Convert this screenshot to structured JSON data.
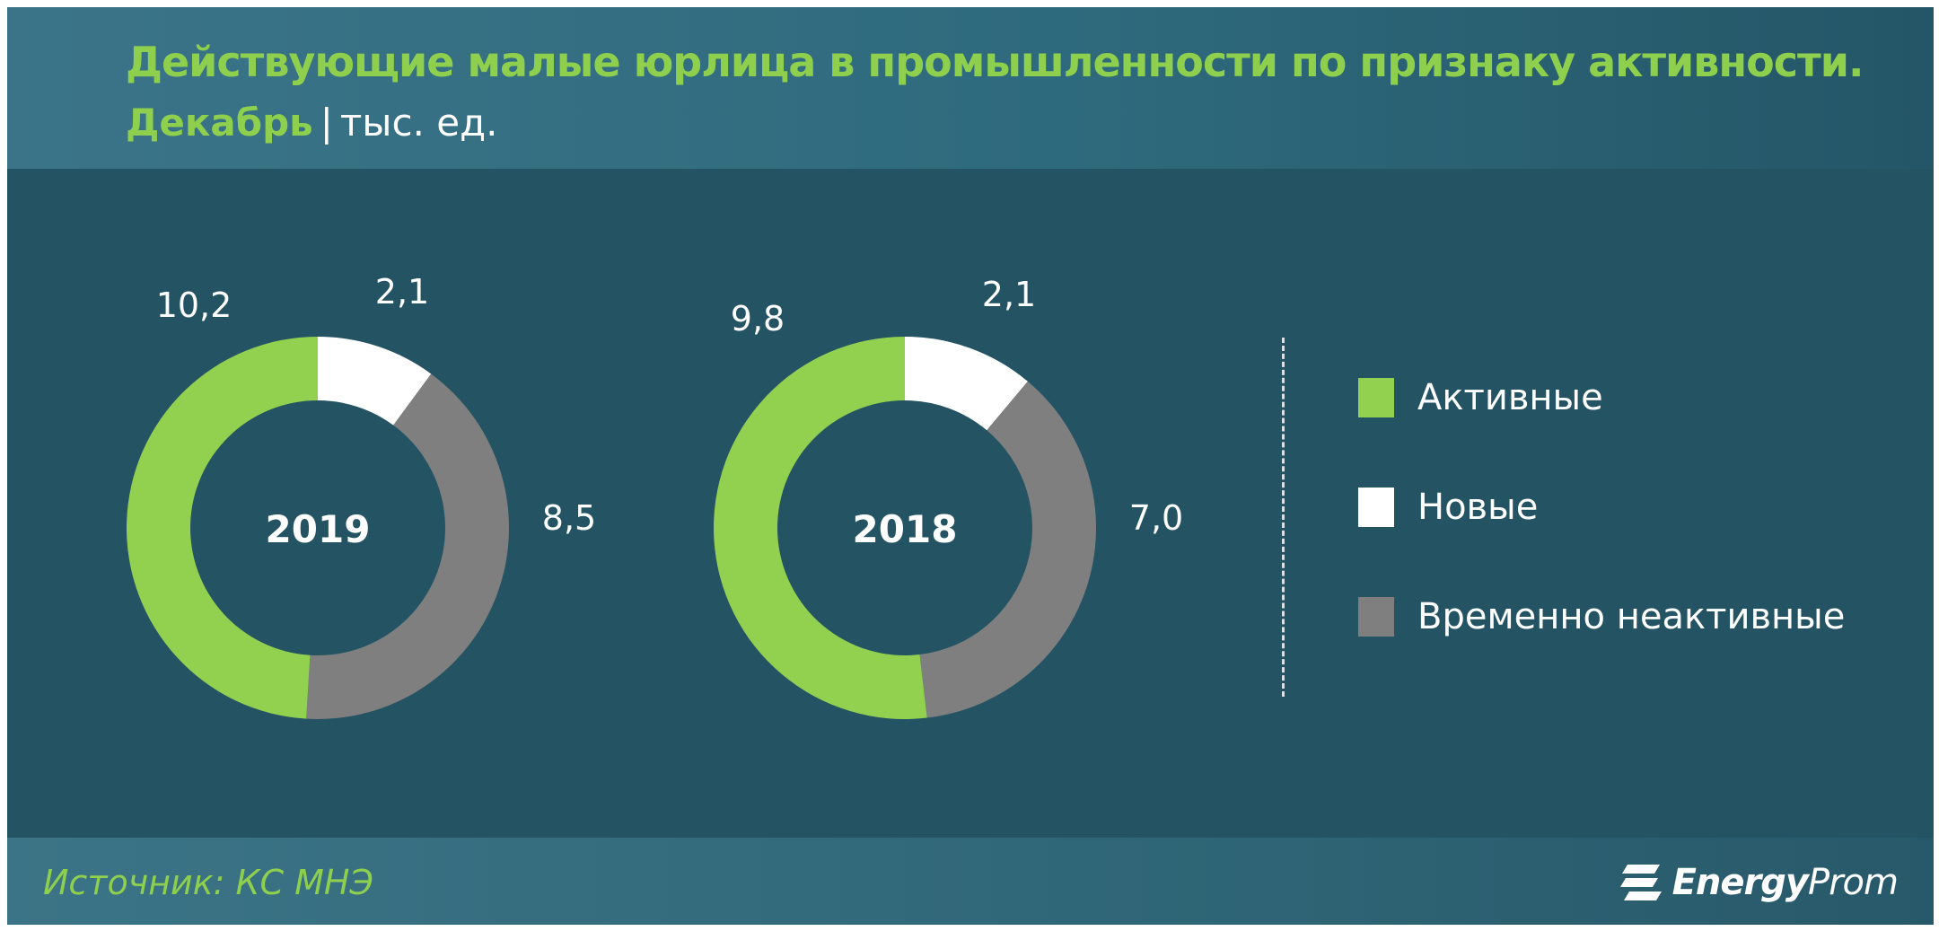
{
  "title": {
    "line1": "Действующие малые юрлица в промышленности по признаку активности.",
    "month": "Декабрь",
    "separator": "|",
    "unit": "тыс. ед."
  },
  "source": "Источник: КС МНЭ",
  "logo": {
    "bold": "Energy",
    "light": "Prom"
  },
  "colors": {
    "active": "#92d050",
    "new": "#ffffff",
    "inactive": "#7f7f7f",
    "background": "#245463"
  },
  "chart_data": [
    {
      "type": "pie",
      "center_label": "2019",
      "categories": [
        "Активные",
        "Новые",
        "Временно неактивные"
      ],
      "values": [
        10.2,
        2.1,
        8.5
      ],
      "value_labels": [
        "10,2",
        "2,1",
        "8,5"
      ]
    },
    {
      "type": "pie",
      "center_label": "2018",
      "categories": [
        "Активные",
        "Новые",
        "Временно неактивные"
      ],
      "values": [
        9.8,
        2.1,
        7.0
      ],
      "value_labels": [
        "9,8",
        "2,1",
        "7,0"
      ]
    }
  ],
  "legend": [
    {
      "label": "Активные",
      "color": "#92d050"
    },
    {
      "label": "Новые",
      "color": "#ffffff"
    },
    {
      "label": "Временно неактивные",
      "color": "#7f7f7f"
    }
  ]
}
